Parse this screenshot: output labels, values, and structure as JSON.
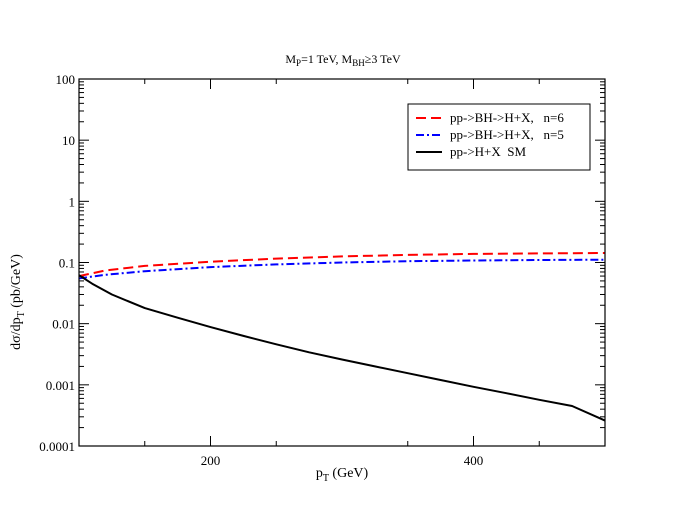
{
  "chart_data": {
    "type": "line",
    "title_parts": {
      "m1": "M",
      "m1_sub": "P",
      "m1_rest": "=1 TeV,  M",
      "m2_sub": "BH",
      "m2_rest": "≥3 TeV"
    },
    "xlabel_parts": {
      "main": "p",
      "sub": "T",
      "rest": " (GeV)"
    },
    "ylabel_parts": {
      "a": "dσ/dp",
      "sub": "T",
      "b": " (pb/GeV)"
    },
    "xlim": [
      100,
      500
    ],
    "ylim": [
      0.0001,
      100
    ],
    "yscale": "log",
    "x_ticks": [
      {
        "value": 200,
        "label": "200"
      },
      {
        "value": 400,
        "label": "400"
      }
    ],
    "y_ticks": [
      {
        "value": 100,
        "label": "100"
      },
      {
        "value": 10,
        "label": "10"
      },
      {
        "value": 1,
        "label": "1"
      },
      {
        "value": 0.1,
        "label": "0.1"
      },
      {
        "value": 0.01,
        "label": "0.01"
      },
      {
        "value": 0.001,
        "label": "0.001"
      },
      {
        "value": 0.0001,
        "label": "0.0001"
      }
    ],
    "legend_position": "top-right",
    "series": [
      {
        "name": "pp->BH->H+X,   n=6",
        "color": "#ff0000",
        "style": "dashed",
        "x": [
          100,
          120,
          150,
          200,
          250,
          300,
          350,
          400,
          450,
          500
        ],
        "y": [
          0.06,
          0.074,
          0.088,
          0.103,
          0.116,
          0.126,
          0.133,
          0.138,
          0.141,
          0.143
        ]
      },
      {
        "name": "pp->BH->H+X,   n=5",
        "color": "#0000ff",
        "style": "dashdot",
        "x": [
          100,
          120,
          150,
          200,
          250,
          300,
          350,
          400,
          450,
          500
        ],
        "y": [
          0.055,
          0.063,
          0.072,
          0.084,
          0.093,
          0.1,
          0.105,
          0.108,
          0.11,
          0.111
        ]
      },
      {
        "name": "pp->H+X  SM",
        "color": "#000000",
        "style": "solid",
        "x": [
          100,
          110,
          125,
          150,
          175,
          200,
          225,
          250,
          275,
          300,
          325,
          350,
          375,
          400,
          425,
          450,
          475,
          500
        ],
        "y": [
          0.062,
          0.045,
          0.03,
          0.018,
          0.0125,
          0.0088,
          0.0063,
          0.0046,
          0.0034,
          0.0026,
          0.002,
          0.00155,
          0.0012,
          0.00093,
          0.00073,
          0.00057,
          0.00045,
          0.00026
        ]
      }
    ]
  }
}
